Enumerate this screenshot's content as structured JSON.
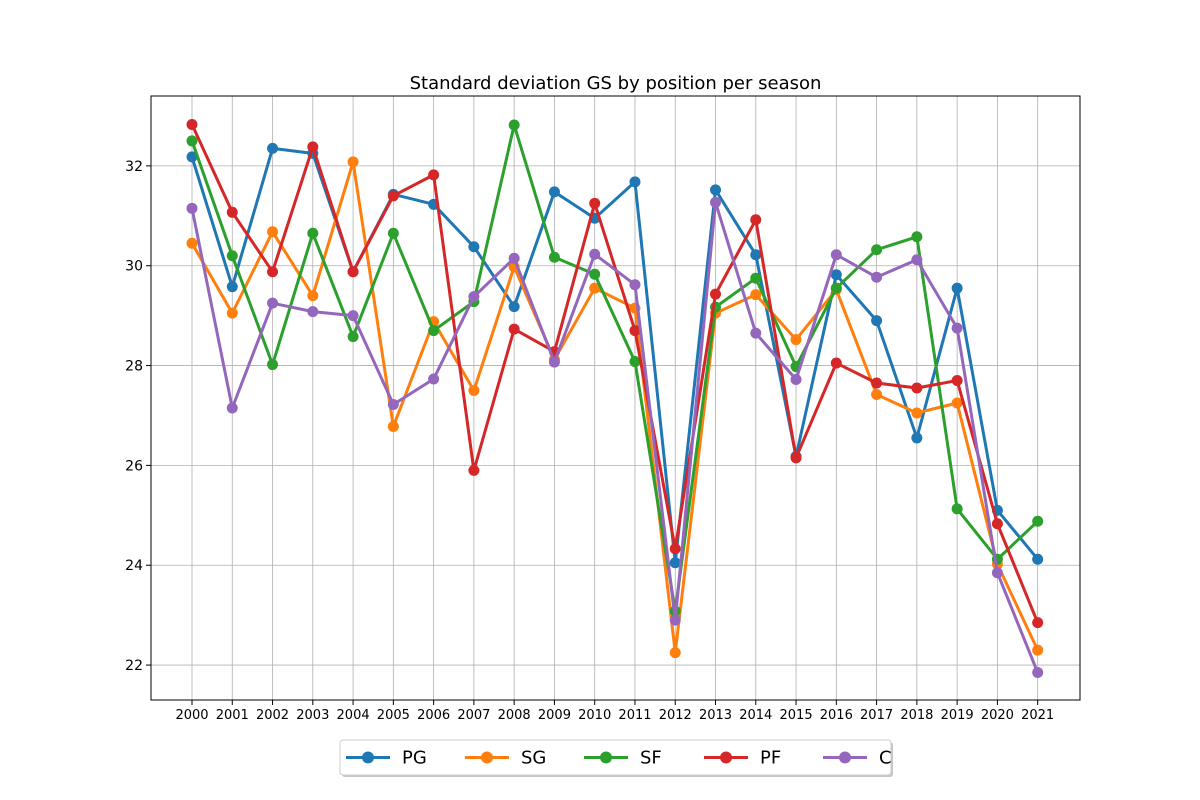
{
  "chart_data": {
    "type": "line",
    "title": "Standard deviation GS by position per season",
    "xlabel": "",
    "ylabel": "",
    "categories": [
      "2000",
      "2001",
      "2002",
      "2003",
      "2004",
      "2005",
      "2006",
      "2007",
      "2008",
      "2009",
      "2010",
      "2011",
      "2012",
      "2013",
      "2014",
      "2015",
      "2016",
      "2017",
      "2018",
      "2019",
      "2020",
      "2021"
    ],
    "ylim": [
      21.3,
      33.4
    ],
    "yticks": [
      22,
      24,
      26,
      28,
      30,
      32
    ],
    "grid": true,
    "legend_position": "bottom-center",
    "series": [
      {
        "name": "PG",
        "color": "#1f77b4",
        "values": [
          32.18,
          29.58,
          32.35,
          32.25,
          29.88,
          31.43,
          31.23,
          30.38,
          29.18,
          31.48,
          30.95,
          31.68,
          24.05,
          31.52,
          30.22,
          26.18,
          29.82,
          28.9,
          26.55,
          29.55,
          25.1,
          24.12
        ]
      },
      {
        "name": "SG",
        "color": "#ff7f0e",
        "values": [
          30.45,
          29.05,
          30.68,
          29.4,
          32.08,
          26.78,
          28.88,
          27.5,
          29.98,
          28.12,
          29.55,
          29.15,
          22.25,
          29.05,
          29.42,
          28.52,
          29.52,
          27.42,
          27.05,
          27.25,
          24.02,
          22.3
        ]
      },
      {
        "name": "SF",
        "color": "#2ca02c",
        "values": [
          32.5,
          30.2,
          28.02,
          30.65,
          28.58,
          30.65,
          28.7,
          29.28,
          32.82,
          30.17,
          29.83,
          28.08,
          23.08,
          29.17,
          29.75,
          27.98,
          29.55,
          30.32,
          30.58,
          25.13,
          24.12,
          24.88
        ]
      },
      {
        "name": "PF",
        "color": "#d62728",
        "values": [
          32.83,
          31.07,
          29.88,
          32.38,
          29.88,
          31.4,
          31.82,
          25.9,
          28.73,
          28.28,
          31.25,
          28.7,
          24.33,
          29.43,
          30.92,
          26.15,
          28.05,
          27.65,
          27.55,
          27.7,
          24.83,
          22.85
        ]
      },
      {
        "name": "C",
        "color": "#9467bd",
        "values": [
          31.15,
          27.15,
          29.25,
          29.08,
          29.0,
          27.22,
          27.73,
          29.38,
          30.15,
          28.07,
          30.23,
          29.62,
          22.9,
          31.27,
          28.65,
          27.72,
          30.22,
          29.77,
          30.12,
          28.75,
          23.85,
          21.85
        ]
      }
    ]
  }
}
